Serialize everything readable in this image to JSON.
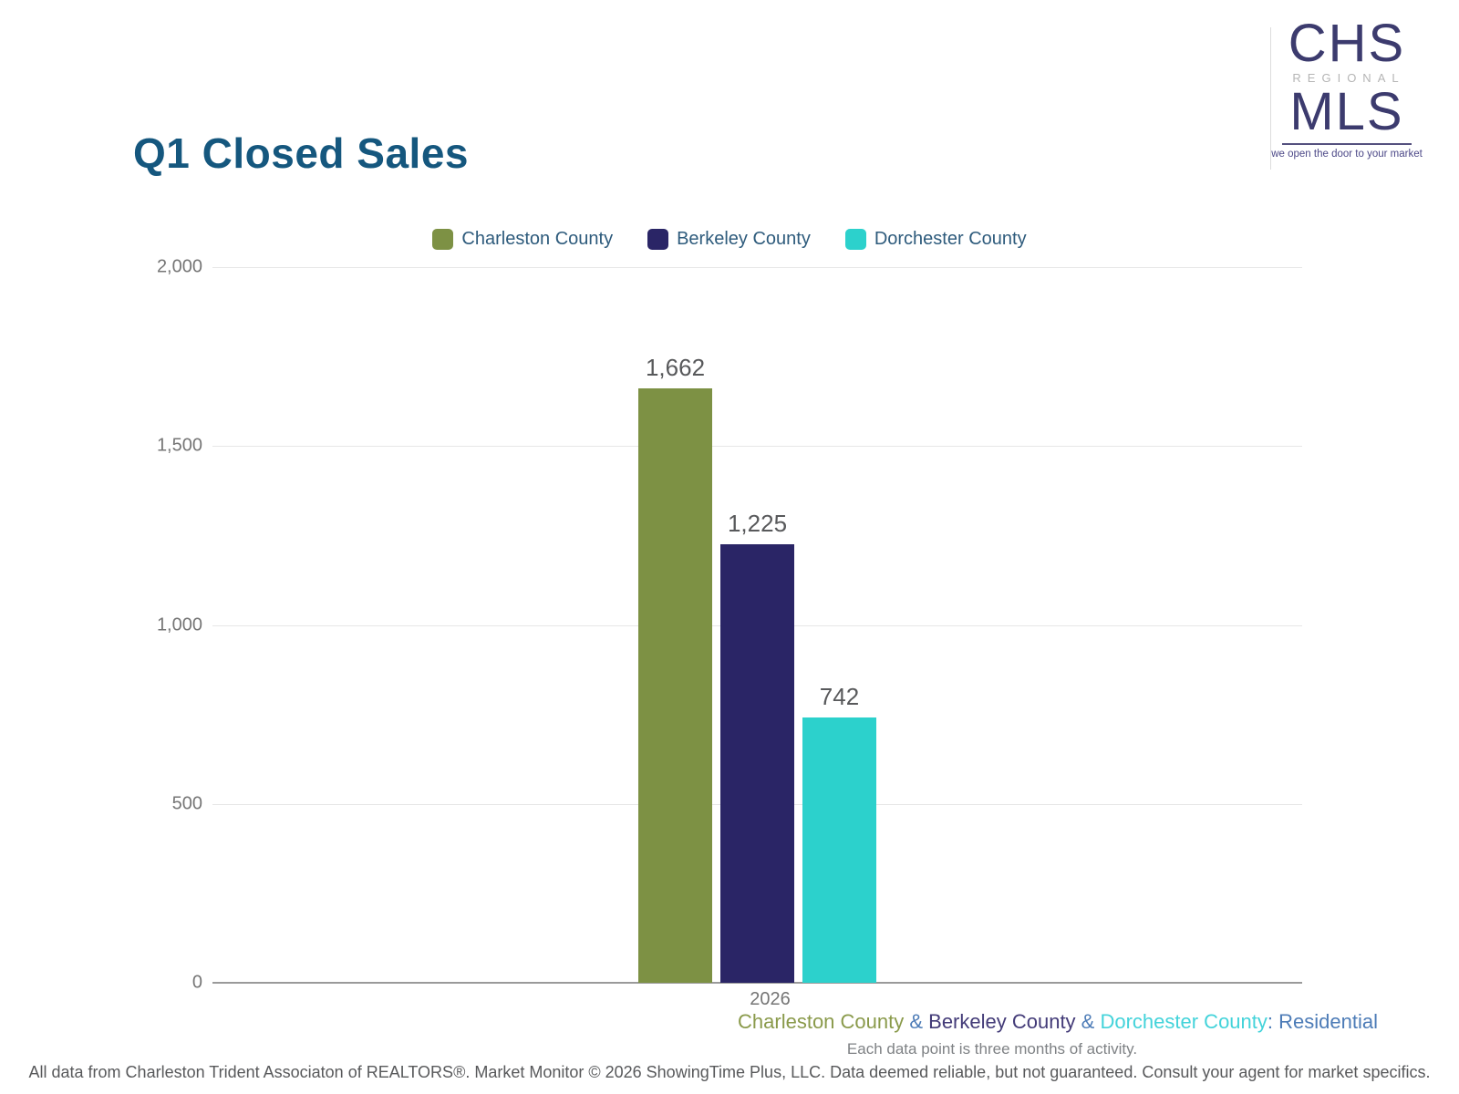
{
  "header": {
    "title": "Q1 Closed Sales"
  },
  "logo": {
    "chs": "CHS",
    "regional": "REGIONAL",
    "mls": "MLS",
    "tagline": "we open the door to your market",
    "navy": "#3c3b6e"
  },
  "chart_data": {
    "type": "bar",
    "categories": [
      "2026"
    ],
    "series": [
      {
        "name": "Charleston County",
        "values": [
          1662
        ],
        "label": "1,662",
        "color": "#7d9144"
      },
      {
        "name": "Berkeley County",
        "values": [
          1225
        ],
        "label": "1,225",
        "color": "#2a2566"
      },
      {
        "name": "Dorchester County",
        "values": [
          742
        ],
        "label": "742",
        "color": "#2cd1cc"
      }
    ],
    "ylim": [
      0,
      2000
    ],
    "yticks": [
      {
        "value": 0,
        "label": "0"
      },
      {
        "value": 500,
        "label": "500"
      },
      {
        "value": 1000,
        "label": "1,000"
      },
      {
        "value": 1500,
        "label": "1,500"
      },
      {
        "value": 2000,
        "label": "2,000"
      }
    ],
    "grid": true,
    "legend_position": "top"
  },
  "subtitle": {
    "segments": [
      {
        "text": "Charleston County",
        "color": "#8a9a4b"
      },
      {
        "text": " & ",
        "color": "#4d7cb7"
      },
      {
        "text": "Berkeley County",
        "color": "#433b78"
      },
      {
        "text": " & ",
        "color": "#4d7cb7"
      },
      {
        "text": "Dorchester County",
        "color": "#43d3da"
      },
      {
        "text": ": Residential",
        "color": "#4d7cb7"
      }
    ]
  },
  "note": {
    "text": "Each data point is three months of activity."
  },
  "footer": {
    "text": "All data from Charleston Trident Associaton of REALTORS®. Market Monitor © 2026 ShowingTime Plus, LLC. Data deemed reliable, but not guaranteed. Consult your agent for market specifics."
  }
}
